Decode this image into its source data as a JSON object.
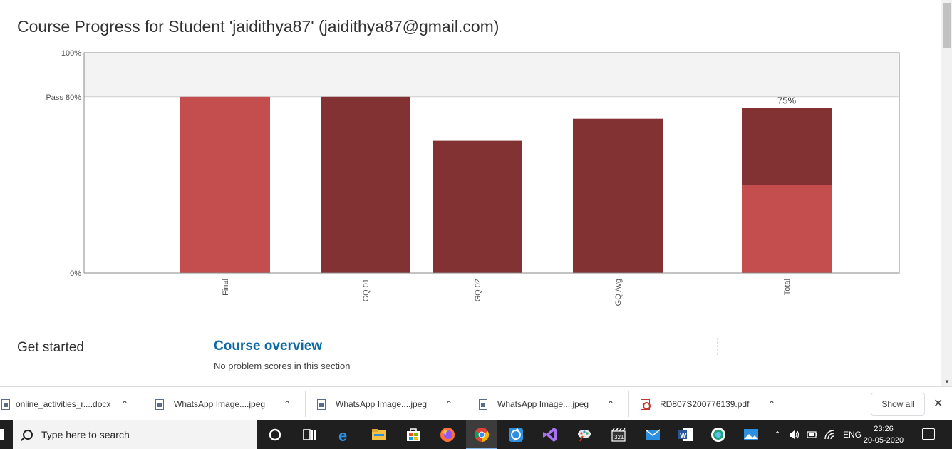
{
  "page": {
    "title": "Course Progress for Student 'jaidithya87' (jaidithya87@gmail.com)",
    "sections": {
      "left_heading": "Get started",
      "link": "Course overview",
      "note": "No problem scores in this section"
    }
  },
  "chart_data": {
    "type": "bar",
    "categories": [
      "Final",
      "GQ 01",
      "GQ 02",
      "GQ Avg",
      "Total"
    ],
    "series": [
      {
        "values": [
          80,
          80,
          60,
          70,
          75
        ],
        "color": "#833234"
      }
    ],
    "highlight_segments": [
      {
        "category": "Final",
        "value": 80,
        "color": "#c44d4d"
      },
      {
        "category": "Total",
        "value": 40,
        "color": "#c44d4d"
      }
    ],
    "y_ticks": [
      {
        "value": 0,
        "label": "0%"
      },
      {
        "value": 80,
        "label": "Pass 80%"
      },
      {
        "value": 100,
        "label": "100%"
      }
    ],
    "bar_labels": [
      {
        "category": "Total",
        "label": "75%"
      }
    ],
    "ylim": [
      0,
      100
    ],
    "pass_band_color": "#f3f3f3"
  },
  "downloads": {
    "items": [
      {
        "name": "online_activities_r....docx",
        "icon": "doc-file-icon"
      },
      {
        "name": "WhatsApp Image....jpeg",
        "icon": "image-file-icon"
      },
      {
        "name": "WhatsApp Image....jpeg",
        "icon": "image-file-icon"
      },
      {
        "name": "WhatsApp Image....jpeg",
        "icon": "image-file-icon"
      },
      {
        "name": "RD807S200776139.pdf",
        "icon": "pdf-file-icon"
      }
    ],
    "show_all": "Show all"
  },
  "taskbar": {
    "search_placeholder": "Type here to search",
    "lang": "ENG",
    "time": "23:26",
    "date": "20-05-2020"
  }
}
